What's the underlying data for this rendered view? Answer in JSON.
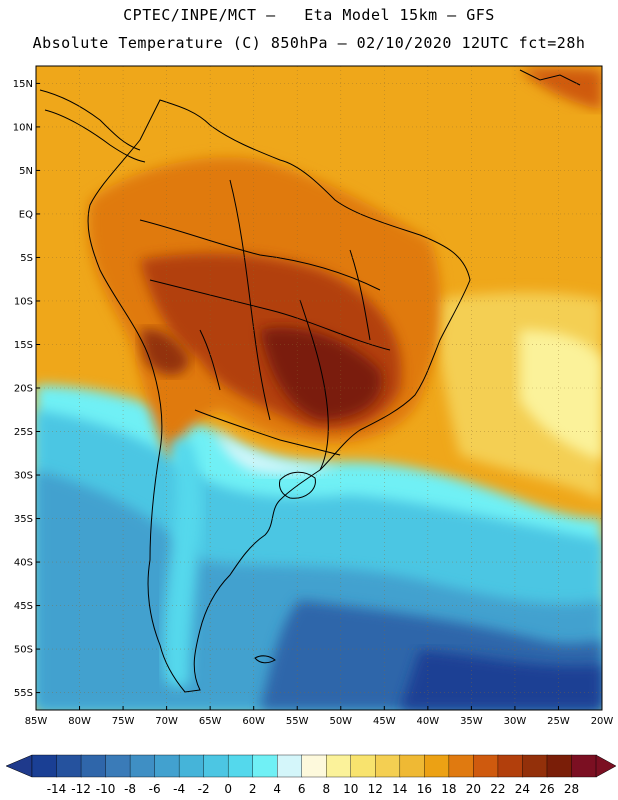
{
  "header": {
    "title_line1": "CPTEC/INPE/MCT –   Eta Model 15km – GFS",
    "title_line2": "Absolute Temperature (C) 850hPa – 02/10/2020 12UTC fct=28h"
  },
  "map": {
    "lat_labels": [
      "15N",
      "10N",
      "5N",
      "EQ",
      "5S",
      "10S",
      "15S",
      "20S",
      "25S",
      "30S",
      "35S",
      "40S",
      "45S",
      "50S",
      "55S"
    ],
    "lon_labels": [
      "85W",
      "80W",
      "75W",
      "70W",
      "65W",
      "60W",
      "55W",
      "50W",
      "45W",
      "40W",
      "35W",
      "30W",
      "25W",
      "20W"
    ],
    "lon_range": [
      -85,
      -20
    ],
    "lat_range": [
      -57,
      17
    ]
  },
  "colorbar": {
    "labels": [
      "-14",
      "-12",
      "-10",
      "-8",
      "-6",
      "-4",
      "-2",
      "0",
      "2",
      "4",
      "6",
      "8",
      "10",
      "12",
      "14",
      "16",
      "18",
      "20",
      "22",
      "24",
      "26",
      "28"
    ],
    "colors": [
      "#1a3f94",
      "#25529e",
      "#2f66aa",
      "#3a7bb8",
      "#3f8fc4",
      "#42a1cf",
      "#45b4d9",
      "#4cc6e3",
      "#54d8ec",
      "#70f0f5",
      "#d4f6fa",
      "#fdf9dc",
      "#fbf29a",
      "#f8e36e",
      "#f4cf52",
      "#efb934",
      "#eca114",
      "#e07a10",
      "#cf5a0e",
      "#b23f0c",
      "#93300a",
      "#7a1e08",
      "#7b0f22"
    ],
    "under_color": "#1f3a8c",
    "over_color": "#7b0f22"
  }
}
